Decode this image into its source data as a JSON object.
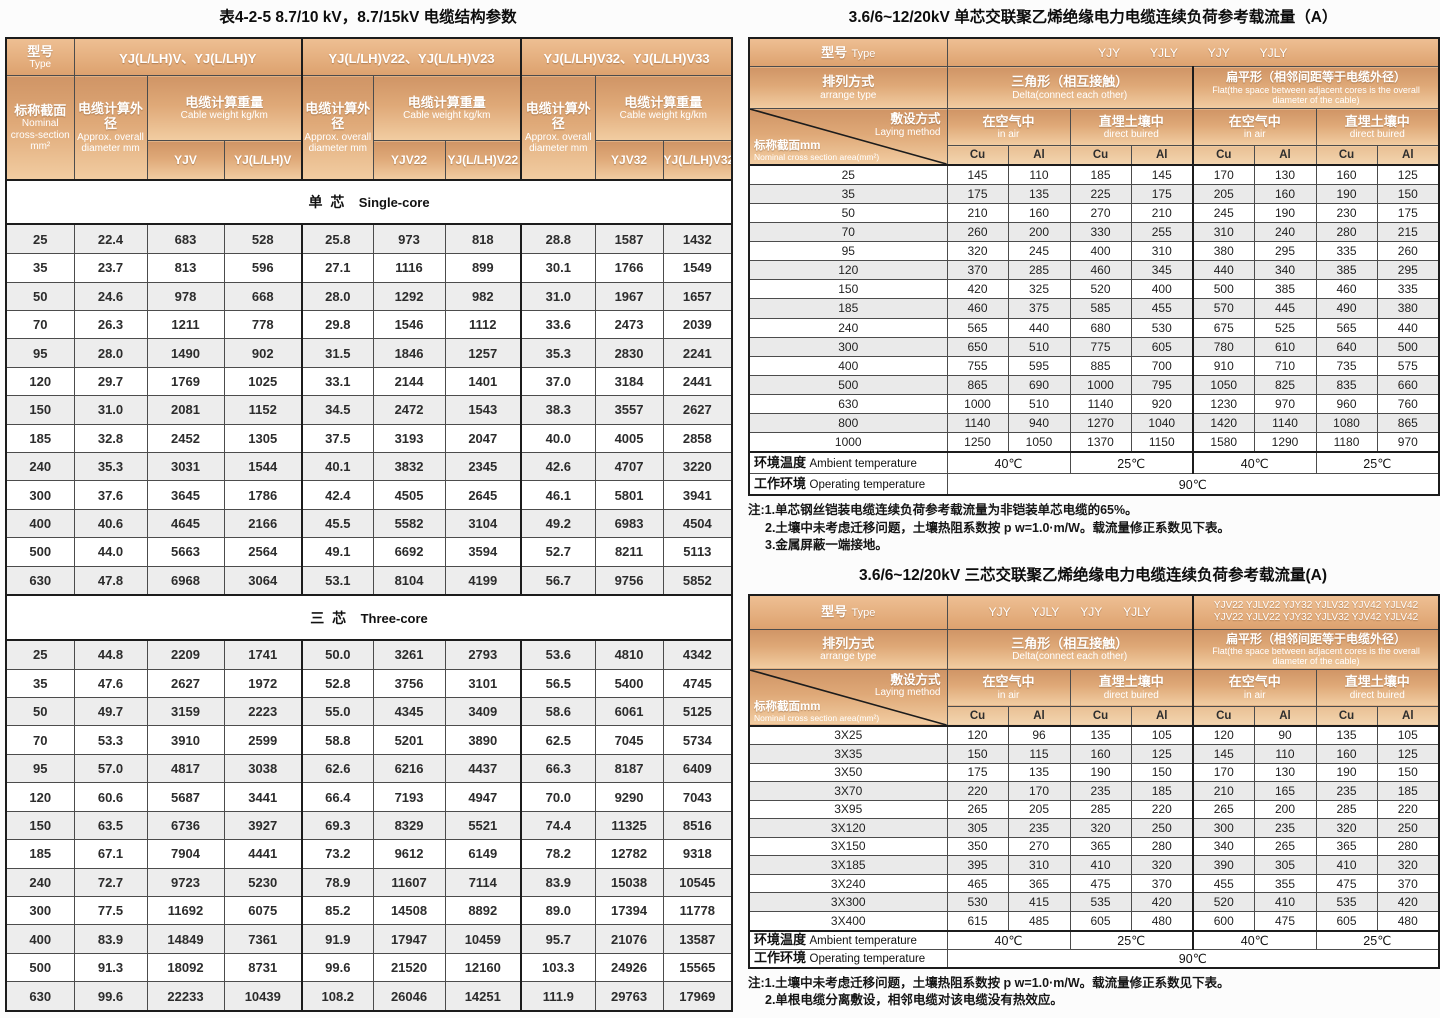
{
  "colors": {
    "header_copper_dark": "#d09566",
    "header_copper_light": "#f2cda2",
    "row_stripe": "#ededed",
    "border_dark": "#1c1c1c",
    "header_text": "#ffffff"
  },
  "left_table": {
    "title": "表4-2-5  8.7/10 kV，8.7/15kV  电缆结构参数",
    "header": {
      "type_zh": "型号",
      "type_en": "Type",
      "groups": [
        "YJ(L/LH)V、YJ(L/LH)Y",
        "YJ(L/LH)V22、YJ(L/LH)V23",
        "YJ(L/LH)V32、YJ(L/LH)V33"
      ],
      "nominal_zh": "标称截面",
      "nominal_en": "Nominal cross-section",
      "nominal_unit": "mm²",
      "diameter_zh": "电缆计算外径",
      "diameter_en": "Approx. overall diameter mm",
      "weight_zh": "电缆计算重量",
      "weight_en": "Cable weight kg/km",
      "weight_cols": [
        "YJV",
        "YJ(L/LH)V",
        "YJV22",
        "YJ(L/LH)V22",
        "YJV32",
        "YJ(L/LH)V32"
      ]
    },
    "sections": [
      {
        "label_zh": "单 芯",
        "label_en": "Single-core",
        "rows": [
          [
            "25",
            "22.4",
            "683",
            "528",
            "25.8",
            "973",
            "818",
            "28.8",
            "1587",
            "1432"
          ],
          [
            "35",
            "23.7",
            "813",
            "596",
            "27.1",
            "1116",
            "899",
            "30.1",
            "1766",
            "1549"
          ],
          [
            "50",
            "24.6",
            "978",
            "668",
            "28.0",
            "1292",
            "982",
            "31.0",
            "1967",
            "1657"
          ],
          [
            "70",
            "26.3",
            "1211",
            "778",
            "29.8",
            "1546",
            "1112",
            "33.6",
            "2473",
            "2039"
          ],
          [
            "95",
            "28.0",
            "1490",
            "902",
            "31.5",
            "1846",
            "1257",
            "35.3",
            "2830",
            "2241"
          ],
          [
            "120",
            "29.7",
            "1769",
            "1025",
            "33.1",
            "2144",
            "1401",
            "37.0",
            "3184",
            "2441"
          ],
          [
            "150",
            "31.0",
            "2081",
            "1152",
            "34.5",
            "2472",
            "1543",
            "38.3",
            "3557",
            "2627"
          ],
          [
            "185",
            "32.8",
            "2452",
            "1305",
            "37.5",
            "3193",
            "2047",
            "40.0",
            "4005",
            "2858"
          ],
          [
            "240",
            "35.3",
            "3031",
            "1544",
            "40.1",
            "3832",
            "2345",
            "42.6",
            "4707",
            "3220"
          ],
          [
            "300",
            "37.6",
            "3645",
            "1786",
            "42.4",
            "4505",
            "2645",
            "46.1",
            "5801",
            "3941"
          ],
          [
            "400",
            "40.6",
            "4645",
            "2166",
            "45.5",
            "5582",
            "3104",
            "49.2",
            "6983",
            "4504"
          ],
          [
            "500",
            "44.0",
            "5663",
            "2564",
            "49.1",
            "6692",
            "3594",
            "52.7",
            "8211",
            "5113"
          ],
          [
            "630",
            "47.8",
            "6968",
            "3064",
            "53.1",
            "8104",
            "4199",
            "56.7",
            "9756",
            "5852"
          ]
        ]
      },
      {
        "label_zh": "三 芯",
        "label_en": "Three-core",
        "rows": [
          [
            "25",
            "44.8",
            "2209",
            "1741",
            "50.0",
            "3261",
            "2793",
            "53.6",
            "4810",
            "4342"
          ],
          [
            "35",
            "47.6",
            "2627",
            "1972",
            "52.8",
            "3756",
            "3101",
            "56.5",
            "5400",
            "4745"
          ],
          [
            "50",
            "49.7",
            "3159",
            "2223",
            "55.0",
            "4345",
            "3409",
            "58.6",
            "6061",
            "5125"
          ],
          [
            "70",
            "53.3",
            "3910",
            "2599",
            "58.8",
            "5201",
            "3890",
            "62.5",
            "7045",
            "5734"
          ],
          [
            "95",
            "57.0",
            "4817",
            "3038",
            "62.6",
            "6216",
            "4437",
            "66.3",
            "8187",
            "6409"
          ],
          [
            "120",
            "60.6",
            "5687",
            "3441",
            "66.4",
            "7193",
            "4947",
            "70.0",
            "9290",
            "7043"
          ],
          [
            "150",
            "63.5",
            "6736",
            "3927",
            "69.3",
            "8329",
            "5521",
            "74.4",
            "11325",
            "8516"
          ],
          [
            "185",
            "67.1",
            "7904",
            "4441",
            "73.2",
            "9612",
            "6149",
            "78.2",
            "12782",
            "9318"
          ],
          [
            "240",
            "72.7",
            "9723",
            "5230",
            "78.9",
            "11607",
            "7114",
            "83.9",
            "15038",
            "10545"
          ],
          [
            "300",
            "77.5",
            "11692",
            "6075",
            "85.2",
            "14508",
            "8892",
            "89.0",
            "17394",
            "11778"
          ],
          [
            "400",
            "83.9",
            "14849",
            "7361",
            "91.9",
            "17947",
            "10459",
            "95.7",
            "21076",
            "13587"
          ],
          [
            "500",
            "91.3",
            "18092",
            "8731",
            "99.6",
            "21520",
            "12160",
            "103.3",
            "24926",
            "15565"
          ],
          [
            "630",
            "99.6",
            "22233",
            "10439",
            "108.2",
            "26046",
            "14251",
            "111.9",
            "29763",
            "17969"
          ]
        ]
      }
    ]
  },
  "right_top": {
    "title": "3.6/6~12/20kV 单芯交联聚乙烯绝缘电力电缆连续负荷参考载流量（A）",
    "type_zh": "型号",
    "type_en": "Type",
    "type_values": "YJY YJLY YJY YJLY",
    "arrange_zh": "排列方式",
    "arrange_en": "arrange type",
    "delta_zh": "三角形（相互接触）",
    "delta_en": "Delta(connect each other)",
    "flat_zh": "扁平形（相邻间距等于电缆外径）",
    "flat_en": "Flat(the space between adjacent cores is the overall diameter of the cable)",
    "laying_zh": "敷设方式",
    "laying_en": "Laying method",
    "nominal_zh": "标称截面mm",
    "nominal_en": "Nominal cross section area(mm²)",
    "air_zh": "在空气中",
    "air_en": "in air",
    "buried_zh": "直埋土壤中",
    "buried_en": "direct buired",
    "cu": "Cu",
    "al": "Al",
    "rows": [
      [
        "25",
        "145",
        "110",
        "185",
        "145",
        "170",
        "130",
        "160",
        "125"
      ],
      [
        "35",
        "175",
        "135",
        "225",
        "175",
        "205",
        "160",
        "190",
        "150"
      ],
      [
        "50",
        "210",
        "160",
        "270",
        "210",
        "245",
        "190",
        "230",
        "175"
      ],
      [
        "70",
        "260",
        "200",
        "330",
        "255",
        "310",
        "240",
        "280",
        "215"
      ],
      [
        "95",
        "320",
        "245",
        "400",
        "310",
        "380",
        "295",
        "335",
        "260"
      ],
      [
        "120",
        "370",
        "285",
        "460",
        "345",
        "440",
        "340",
        "385",
        "295"
      ],
      [
        "150",
        "420",
        "325",
        "520",
        "400",
        "500",
        "385",
        "460",
        "335"
      ],
      [
        "185",
        "460",
        "375",
        "585",
        "455",
        "570",
        "445",
        "490",
        "380"
      ],
      [
        "240",
        "565",
        "440",
        "680",
        "530",
        "675",
        "525",
        "565",
        "440"
      ],
      [
        "300",
        "650",
        "510",
        "775",
        "605",
        "780",
        "610",
        "640",
        "500"
      ],
      [
        "400",
        "755",
        "595",
        "885",
        "700",
        "910",
        "710",
        "735",
        "575"
      ],
      [
        "500",
        "865",
        "690",
        "1000",
        "795",
        "1050",
        "825",
        "835",
        "660"
      ],
      [
        "630",
        "1000",
        "510",
        "1140",
        "920",
        "1230",
        "970",
        "960",
        "760"
      ],
      [
        "800",
        "1140",
        "940",
        "1270",
        "1040",
        "1420",
        "1140",
        "1080",
        "865"
      ],
      [
        "1000",
        "1250",
        "1050",
        "1370",
        "1150",
        "1580",
        "1290",
        "1180",
        "970"
      ]
    ],
    "ambient_zh": "环境温度",
    "ambient_en": "Ambient temperature",
    "ambient_values": [
      "40℃",
      "25℃",
      "40℃",
      "25℃"
    ],
    "operating_zh": "工作环境",
    "operating_en": "Operating temperature",
    "operating_value": "90℃",
    "notes": [
      "注:1.单芯钢丝铠装电缆连续负荷参考载流量为非铠装单芯电缆的65%。",
      "2.土壤中未考虑迁移问题，土壤热阻系数按 p w=1.0·m/W。载流量修正系数见下表。",
      "3.金属屏蔽一端接地。"
    ]
  },
  "right_bottom": {
    "title": "3.6/6~12/20kV 三芯交联聚乙烯绝缘电力电缆连续负荷参考载流量(A)",
    "type_zh": "型号",
    "type_en": "Type",
    "type_values_delta": "YJY YJLY YJY YJLY",
    "type_values_flat_line1": "YJV22 YJLV22 YJY32 YJLV32 YJV42 YJLV42",
    "type_values_flat_line2": "YJV22 YJLV22 YJY32 YJLV32 YJV42 YJLV42",
    "arrange_zh": "排列方式",
    "arrange_en": "arrange type",
    "delta_zh": "三角形（相互接触）",
    "delta_en": "Delta(connect each other)",
    "flat_zh": "扁平形（相邻间距等于电缆外径）",
    "flat_en": "Flat(the space between adjacent cores is the overall diameter of the cable)",
    "laying_zh": "敷设方式",
    "laying_en": "Laying method",
    "nominal_zh": "标称截面mm",
    "nominal_en": "Nominal cross section area(mm²)",
    "air_zh": "在空气中",
    "air_en": "in air",
    "buried_zh": "直埋土壤中",
    "buried_en": "direct buired",
    "cu": "Cu",
    "al": "Al",
    "rows": [
      [
        "3X25",
        "120",
        "96",
        "135",
        "105",
        "120",
        "90",
        "135",
        "105"
      ],
      [
        "3X35",
        "150",
        "115",
        "160",
        "125",
        "145",
        "110",
        "160",
        "125"
      ],
      [
        "3X50",
        "175",
        "135",
        "190",
        "150",
        "170",
        "130",
        "190",
        "150"
      ],
      [
        "3X70",
        "220",
        "170",
        "235",
        "185",
        "210",
        "165",
        "235",
        "185"
      ],
      [
        "3X95",
        "265",
        "205",
        "285",
        "220",
        "265",
        "200",
        "285",
        "220"
      ],
      [
        "3X120",
        "305",
        "235",
        "320",
        "250",
        "300",
        "235",
        "320",
        "250"
      ],
      [
        "3X150",
        "350",
        "270",
        "365",
        "280",
        "340",
        "265",
        "365",
        "280"
      ],
      [
        "3X185",
        "395",
        "310",
        "410",
        "320",
        "390",
        "305",
        "410",
        "320"
      ],
      [
        "3X240",
        "465",
        "365",
        "475",
        "370",
        "455",
        "355",
        "475",
        "370"
      ],
      [
        "3X300",
        "530",
        "415",
        "535",
        "420",
        "520",
        "410",
        "535",
        "420"
      ],
      [
        "3X400",
        "615",
        "485",
        "605",
        "480",
        "600",
        "475",
        "605",
        "480"
      ]
    ],
    "ambient_zh": "环境温度",
    "ambient_en": "Ambient temperature",
    "ambient_values": [
      "40℃",
      "25℃",
      "40℃",
      "25℃"
    ],
    "operating_zh": "工作环境",
    "operating_en": "Operating temperature",
    "operating_value": "90℃",
    "notes": [
      "注:1.土壤中未考虑迁移问题，土壤热阻系数按 p w=1.0·m/W。载流量修正系数见下表。",
      "2.单根电缆分离敷设，相邻电缆对该电缆没有热效应。"
    ]
  }
}
